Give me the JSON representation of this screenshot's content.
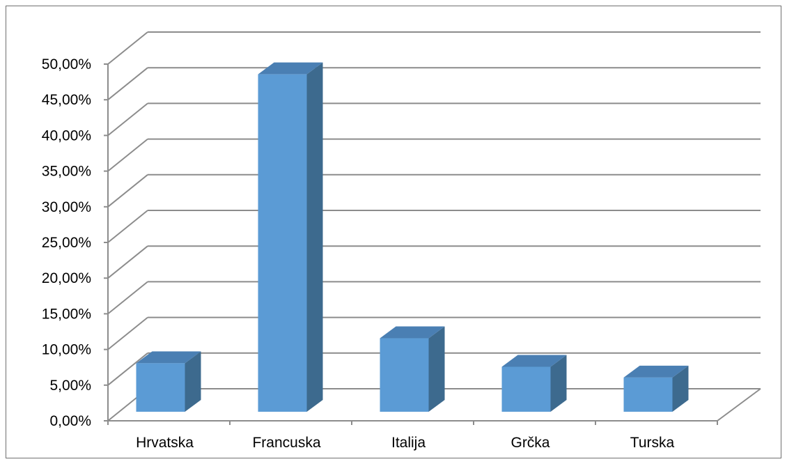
{
  "chart_data": {
    "type": "bar",
    "title": "",
    "xlabel": "",
    "ylabel": "",
    "categories": [
      "Hrvatska",
      "Francuska",
      "Italija",
      "Grčka",
      "Turska"
    ],
    "values": [
      6.8,
      47.3,
      10.3,
      6.3,
      4.8
    ],
    "ylim": [
      0,
      50
    ],
    "y_ticks": [
      "0,00%",
      "5,00%",
      "10,00%",
      "15,00%",
      "20,00%",
      "25,00%",
      "30,00%",
      "35,00%",
      "40,00%",
      "45,00%",
      "50,00%"
    ],
    "grid": true,
    "legend": "none",
    "style": "3d-column",
    "colors": {
      "bar_front": "#5b9bd5",
      "bar_side": "#3d6a8e",
      "bar_top": "#4a7fb3",
      "gridline": "#8c8c8c"
    }
  }
}
